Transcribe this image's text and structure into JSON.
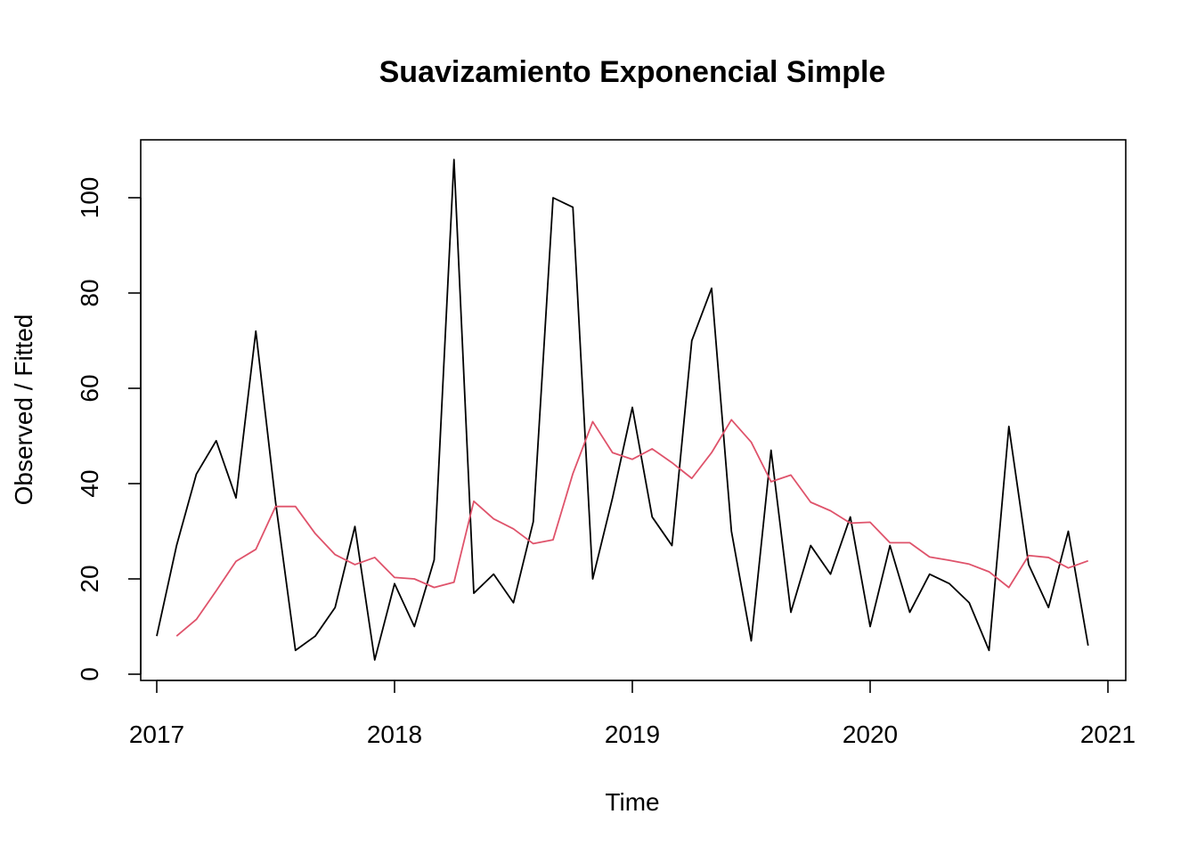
{
  "chart_data": {
    "type": "line",
    "title": "Suavizamiento Exponencial Simple",
    "xlabel": "Time",
    "ylabel": "Observed / Fitted",
    "xlim": [
      2017,
      2021
    ],
    "ylim": [
      0,
      108
    ],
    "x_ticks": [
      "2017",
      "2018",
      "2019",
      "2020",
      "2021"
    ],
    "y_ticks": [
      "0",
      "20",
      "40",
      "60",
      "80",
      "100"
    ],
    "series": [
      {
        "color": "#000000",
        "start": 2017.0,
        "frequency": 12,
        "values": [
          8,
          27,
          42,
          49,
          37,
          72,
          36,
          5,
          8,
          14,
          31,
          3,
          19,
          10,
          24,
          108,
          17,
          21,
          15,
          32,
          100,
          98,
          20,
          37,
          56,
          33,
          27,
          70,
          81,
          30,
          7,
          47,
          13,
          27,
          21,
          33,
          10,
          27,
          13,
          21,
          19,
          15,
          5,
          52,
          23,
          14,
          30,
          6
        ]
      },
      {
        "color": "#DF536B",
        "start": 2017.0833,
        "frequency": 12,
        "values": [
          8,
          11.5,
          17.5,
          23.7,
          26.2,
          35.2,
          35.2,
          29.5,
          25.1,
          23,
          24.5,
          20.3,
          20,
          18.2,
          19.3,
          36.3,
          32.6,
          30.5,
          27.4,
          28.2,
          42.1,
          53,
          46.5,
          45.1,
          47.3,
          44.4,
          41.1,
          46.5,
          53.4,
          48.7,
          40.4,
          41.8,
          36.1,
          34.3,
          31.7,
          31.9,
          27.6,
          27.6,
          24.6,
          23.9,
          23.1,
          21.5,
          18.2,
          24.9,
          24.5,
          22.3,
          23.8
        ]
      }
    ]
  }
}
